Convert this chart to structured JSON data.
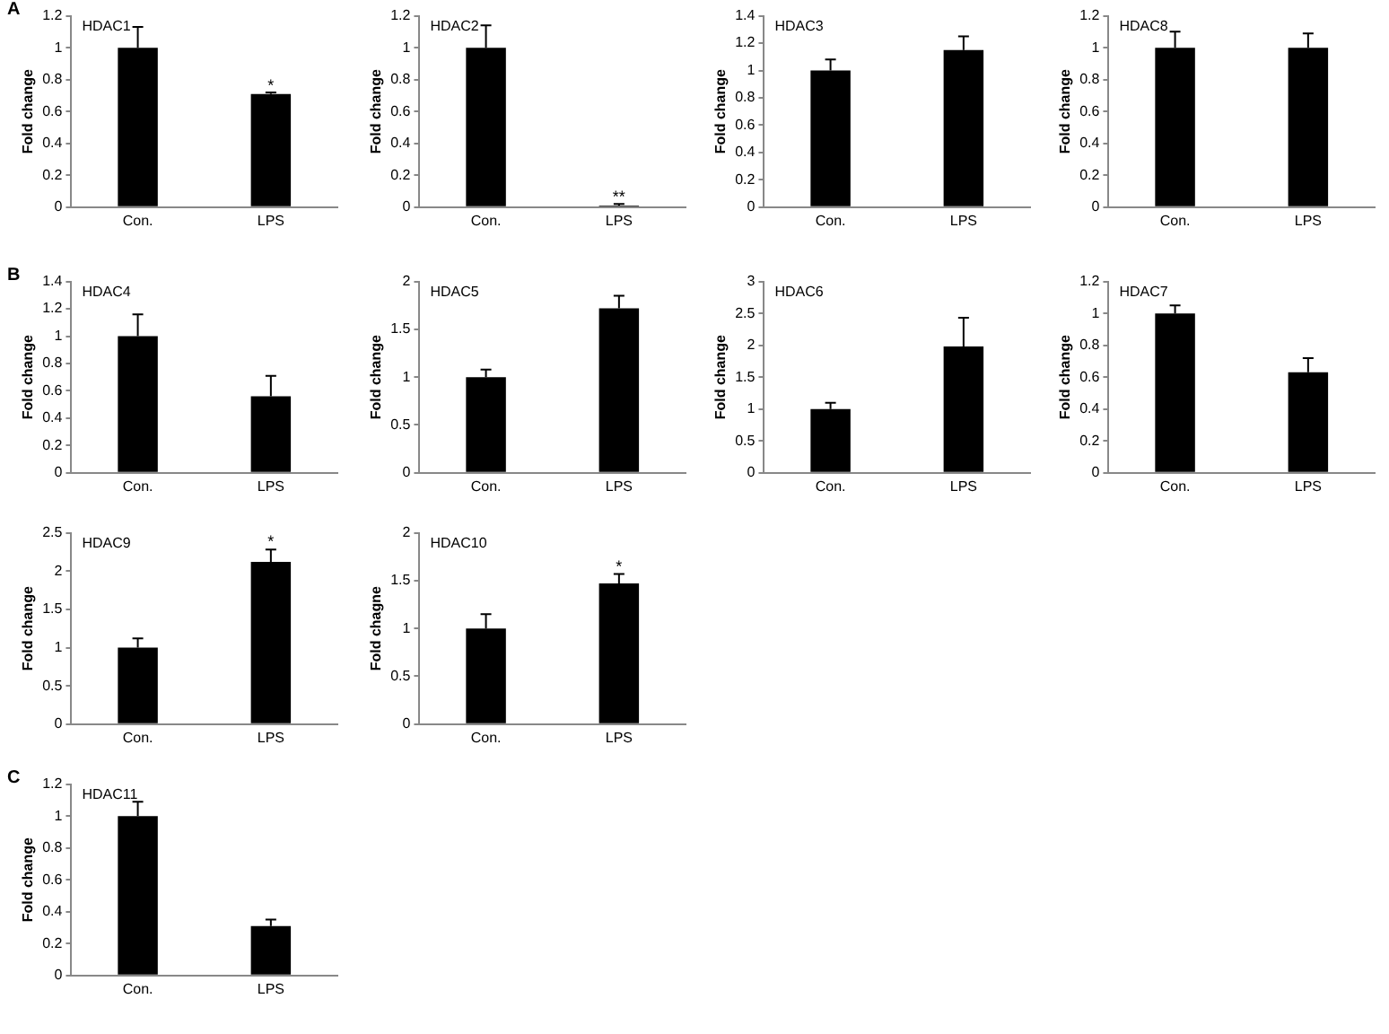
{
  "chart_data": [
    {
      "type": "bar",
      "title": "HDAC1",
      "ylabel": "Fold change",
      "categories": [
        "Con.",
        "LPS"
      ],
      "values": [
        1.0,
        0.71
      ],
      "errors": [
        [
          1.0,
          1.13
        ],
        [
          0.71,
          0.72
        ]
      ],
      "color": "#000000",
      "ylim": [
        0,
        1.2
      ],
      "yticks": [
        0,
        0.2,
        0.4,
        0.6,
        0.8,
        1,
        1.2
      ],
      "grid": false,
      "legend": false,
      "annotations": [
        "A",
        {
          "text": "*",
          "x": "LPS",
          "y": 0.76
        }
      ]
    },
    {
      "type": "bar",
      "title": "HDAC2",
      "ylabel": "Fold change",
      "categories": [
        "Con.",
        "LPS"
      ],
      "values": [
        1.0,
        0.01
      ],
      "errors": [
        [
          1.0,
          1.14
        ],
        [
          0.01,
          0.02
        ]
      ],
      "color": "#000000",
      "ylim": [
        0,
        1.2
      ],
      "yticks": [
        0,
        0.2,
        0.4,
        0.6,
        0.8,
        1,
        1.2
      ],
      "grid": false,
      "legend": false,
      "annotations": [
        {
          "text": "**",
          "x": "LPS",
          "y": 0.06
        }
      ]
    },
    {
      "type": "bar",
      "title": "HDAC3",
      "ylabel": "Fold change",
      "categories": [
        "Con.",
        "LPS"
      ],
      "values": [
        1.0,
        1.15
      ],
      "errors": [
        [
          1.0,
          1.08
        ],
        [
          1.15,
          1.25
        ]
      ],
      "color": "#000000",
      "ylim": [
        0,
        1.4
      ],
      "yticks": [
        0,
        0.2,
        0.4,
        0.6,
        0.8,
        1,
        1.2,
        1.4
      ],
      "grid": false,
      "legend": false
    },
    {
      "type": "bar",
      "title": "HDAC8",
      "ylabel": "Fold change",
      "categories": [
        "Con.",
        "LPS"
      ],
      "values": [
        1.0,
        1.0
      ],
      "errors": [
        [
          1.0,
          1.1
        ],
        [
          1.0,
          1.09
        ]
      ],
      "color": "#000000",
      "ylim": [
        0,
        1.2
      ],
      "yticks": [
        0,
        0.2,
        0.4,
        0.6,
        0.8,
        1,
        1.2
      ],
      "grid": false,
      "legend": false
    },
    {
      "type": "bar",
      "title": "HDAC4",
      "ylabel": "Fold change",
      "categories": [
        "Con.",
        "LPS"
      ],
      "values": [
        1.0,
        0.56
      ],
      "errors": [
        [
          1.0,
          1.16
        ],
        [
          0.56,
          0.71
        ]
      ],
      "color": "#000000",
      "ylim": [
        0,
        1.4
      ],
      "yticks": [
        0,
        0.2,
        0.4,
        0.6,
        0.8,
        1,
        1.2,
        1.4
      ],
      "grid": false,
      "legend": false,
      "annotations": [
        "B"
      ]
    },
    {
      "type": "bar",
      "title": "HDAC5",
      "ylabel": "Fold change",
      "categories": [
        "Con.",
        "LPS"
      ],
      "values": [
        1.0,
        1.72
      ],
      "errors": [
        [
          1.0,
          1.08
        ],
        [
          1.72,
          1.85
        ]
      ],
      "color": "#000000",
      "ylim": [
        0,
        2
      ],
      "yticks": [
        0,
        0.5,
        1,
        1.5,
        2
      ],
      "grid": false,
      "legend": false
    },
    {
      "type": "bar",
      "title": "HDAC6",
      "ylabel": "Fold change",
      "categories": [
        "Con.",
        "LPS"
      ],
      "values": [
        1.0,
        1.98
      ],
      "errors": [
        [
          1.0,
          1.1
        ],
        [
          1.98,
          2.43
        ]
      ],
      "color": "#000000",
      "ylim": [
        0,
        3
      ],
      "yticks": [
        0,
        0.5,
        1,
        1.5,
        2,
        2.5,
        3
      ],
      "grid": false,
      "legend": false
    },
    {
      "type": "bar",
      "title": "HDAC7",
      "ylabel": "Fold change",
      "categories": [
        "Con.",
        "LPS"
      ],
      "values": [
        1.0,
        0.63
      ],
      "errors": [
        [
          1.0,
          1.05
        ],
        [
          0.63,
          0.72
        ]
      ],
      "color": "#000000",
      "ylim": [
        0,
        1.2
      ],
      "yticks": [
        0,
        0.2,
        0.4,
        0.6,
        0.8,
        1,
        1.2
      ],
      "grid": false,
      "legend": false
    },
    {
      "type": "bar",
      "title": "HDAC9",
      "ylabel": "Fold change",
      "categories": [
        "Con.",
        "LPS"
      ],
      "values": [
        1.0,
        2.12
      ],
      "errors": [
        [
          1.0,
          1.12
        ],
        [
          2.12,
          2.28
        ]
      ],
      "color": "#000000",
      "ylim": [
        0,
        2.5
      ],
      "yticks": [
        0,
        0.5,
        1,
        1.5,
        2,
        2.5
      ],
      "grid": false,
      "legend": false,
      "annotations": [
        {
          "text": "*",
          "x": "LPS",
          "y": 2.38
        }
      ]
    },
    {
      "type": "bar",
      "title": "HDAC10",
      "ylabel": "Fold chagne",
      "categories": [
        "Con.",
        "LPS"
      ],
      "values": [
        1.0,
        1.47
      ],
      "errors": [
        [
          1.0,
          1.15
        ],
        [
          1.47,
          1.57
        ]
      ],
      "color": "#000000",
      "ylim": [
        0,
        2
      ],
      "yticks": [
        0,
        0.5,
        1,
        1.5,
        2
      ],
      "grid": false,
      "legend": false,
      "annotations": [
        {
          "text": "*",
          "x": "LPS",
          "y": 1.64
        }
      ]
    },
    {
      "type": "bar",
      "title": "HDAC11",
      "ylabel": "Fold change",
      "categories": [
        "Con.",
        "LPS"
      ],
      "values": [
        1.0,
        0.31
      ],
      "errors": [
        [
          1.0,
          1.09
        ],
        [
          0.31,
          0.35
        ]
      ],
      "color": "#000000",
      "ylim": [
        0,
        1.2
      ],
      "yticks": [
        0,
        0.2,
        0.4,
        0.6,
        0.8,
        1,
        1.2
      ],
      "grid": false,
      "legend": false,
      "annotations": [
        "C"
      ]
    }
  ]
}
